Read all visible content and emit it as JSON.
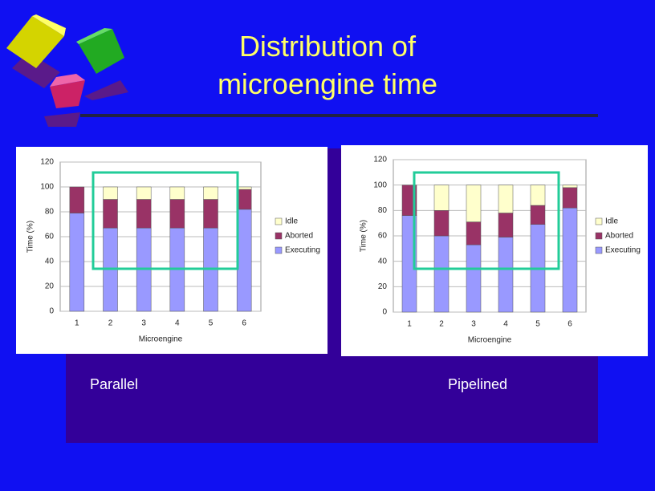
{
  "slide_title": [
    "Distribution of",
    "microengine time"
  ],
  "chart_data": [
    {
      "type": "stacked_bar",
      "caption": "Parallel",
      "x_label": "Microengine",
      "y_label": "Time (%)",
      "categories": [
        "1",
        "2",
        "3",
        "4",
        "5",
        "6"
      ],
      "series": [
        {
          "name": "Executing",
          "color": "#9999ff",
          "values": [
            79,
            67,
            67,
            67,
            67,
            82
          ]
        },
        {
          "name": "Aborted",
          "color": "#993366",
          "values": [
            21,
            23,
            23,
            23,
            23,
            16
          ]
        },
        {
          "name": "Idle",
          "color": "#ffffcc",
          "values": [
            0,
            10,
            10,
            10,
            10,
            2
          ]
        }
      ],
      "ylim": [
        0,
        120
      ],
      "yticks": [
        0,
        20,
        40,
        60,
        80,
        100,
        120
      ],
      "grid": true,
      "legend": "right"
    },
    {
      "type": "stacked_bar",
      "caption": "Pipelined",
      "x_label": "Microengine",
      "y_label": "Time (%)",
      "categories": [
        "1",
        "2",
        "3",
        "4",
        "5",
        "6"
      ],
      "series": [
        {
          "name": "Executing",
          "color": "#9999ff",
          "values": [
            76,
            60,
            53,
            59,
            69,
            82
          ]
        },
        {
          "name": "Aborted",
          "color": "#993366",
          "values": [
            24,
            20,
            18,
            19,
            15,
            16
          ]
        },
        {
          "name": "Idle",
          "color": "#ffffcc",
          "values": [
            0,
            20,
            29,
            22,
            16,
            2
          ]
        }
      ],
      "ylim": [
        0,
        120
      ],
      "yticks": [
        0,
        20,
        40,
        60,
        80,
        100,
        120
      ],
      "grid": true,
      "legend": "right"
    }
  ]
}
